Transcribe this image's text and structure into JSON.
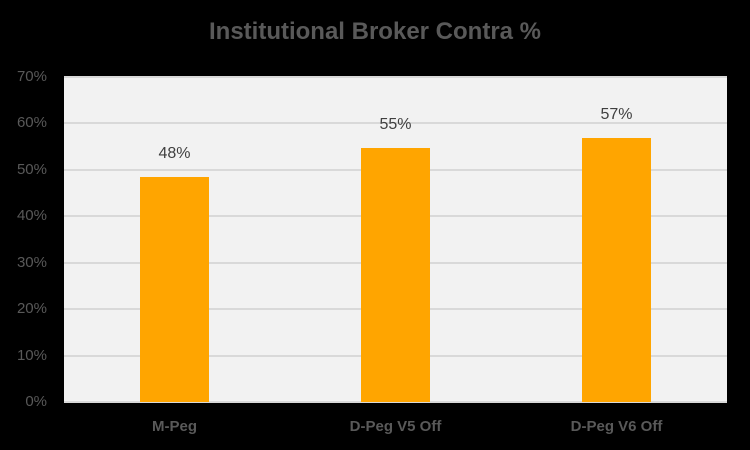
{
  "chart_data": {
    "type": "bar",
    "title": "Institutional Broker Contra %",
    "categories": [
      "M-Peg",
      "D-Peg V5 Off",
      "D-Peg V6 Off"
    ],
    "values": [
      48.5,
      54.7,
      56.9
    ],
    "data_labels": [
      "48%",
      "55%",
      "57%"
    ],
    "xlabel": "",
    "ylabel": "",
    "ylim": [
      0,
      70
    ],
    "yticks": [
      "0%",
      "10%",
      "20%",
      "30%",
      "40%",
      "50%",
      "60%",
      "70%"
    ],
    "grid": true,
    "legend": "none",
    "bar_color": "#ffa500"
  }
}
